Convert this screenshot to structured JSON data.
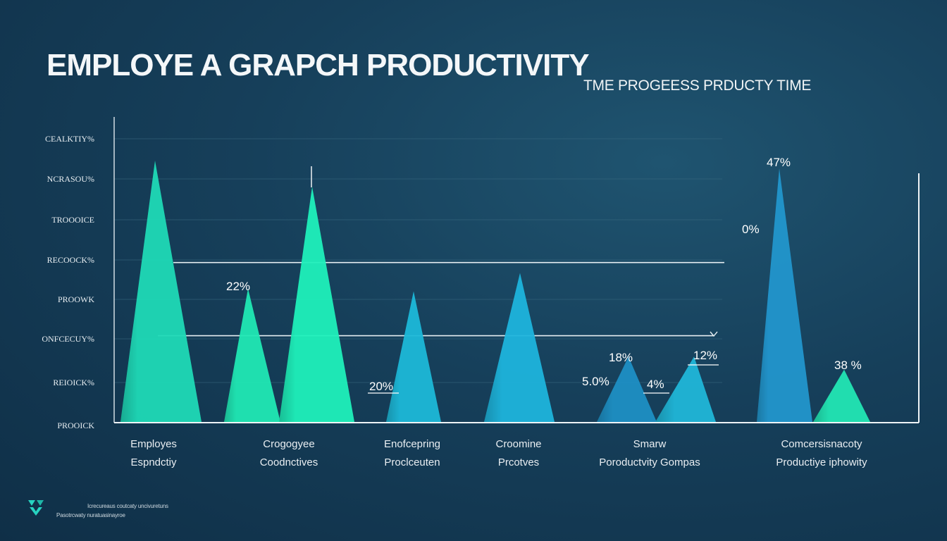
{
  "header": {
    "title": "EMPLOYE A GRAPCH PRODUCTIVITY",
    "subtitle": "TME PROGEESS PRDUCTY TIME"
  },
  "chart_data": {
    "type": "area",
    "title": "EMPLOYE A GRAPCH PRODUCTIVITY",
    "subtitle": "TME PROGEESS PRDUCTY TIME",
    "y_tick_labels": [
      "CEALKTIY%",
      "NCRASOU%",
      "TROOOICE",
      "RECOOCK%",
      "PROOWK",
      "ONFCECUY%",
      "REIOICK%",
      "PROOICK"
    ],
    "ylim": [
      0,
      100
    ],
    "grid": true,
    "categories": [
      {
        "line1": "Employes",
        "line2": "Espndctiy"
      },
      {
        "line1": "Crogogyee",
        "line2": "Coodnctives"
      },
      {
        "line1": "Enofcepring",
        "line2": "Proclceuten"
      },
      {
        "line1": "Croomine",
        "line2": "Prcotves"
      },
      {
        "line1": "Smarw",
        "line2": "Poroductvity Gompas"
      },
      {
        "line1": "Comcersisnacoty",
        "line2": "Productiye iphowity"
      }
    ],
    "series": [
      {
        "name": "peak-1",
        "category": 0,
        "value": 100,
        "color": "#1fd9b6"
      },
      {
        "name": "peak-2",
        "category": 1,
        "value": 51,
        "color": "#20e8b4"
      },
      {
        "name": "peak-3",
        "category": 1,
        "value": 90,
        "color": "#1ff0bb"
      },
      {
        "name": "peak-4",
        "category": 2,
        "value": 50,
        "color": "#1cb8d8"
      },
      {
        "name": "peak-5",
        "category": 3,
        "value": 57,
        "color": "#1eb4dc"
      },
      {
        "name": "peak-6",
        "category": 4,
        "value": 25,
        "color": "#1e8fc4"
      },
      {
        "name": "peak-7",
        "category": 4,
        "value": 25,
        "color": "#20b6d8"
      },
      {
        "name": "peak-8",
        "category": 5,
        "value": 97,
        "color": "#2296cc"
      },
      {
        "name": "peak-9",
        "category": 5,
        "value": 20,
        "color": "#22e6b4"
      }
    ],
    "data_labels": [
      {
        "text": "22%",
        "category": 1
      },
      {
        "text": "20%",
        "category": 2
      },
      {
        "text": "18%",
        "category": 4
      },
      {
        "text": "5.0%",
        "category": 4
      },
      {
        "text": "4%",
        "category": 4
      },
      {
        "text": "12%",
        "category": 4
      },
      {
        "text": "47%",
        "category": 5
      },
      {
        "text": "0%",
        "category": 5
      },
      {
        "text": "38 %",
        "category": 5
      }
    ],
    "reference_lines": [
      {
        "name": "upper-reference",
        "value": 61
      },
      {
        "name": "lower-reference",
        "value": 33
      }
    ]
  },
  "footer": {
    "line1": "Icrecureaus coutcaty uncivuretuns",
    "line2": "Pasotrcwaty nuratuasinayroe",
    "logo_color": "#27d3c0"
  }
}
